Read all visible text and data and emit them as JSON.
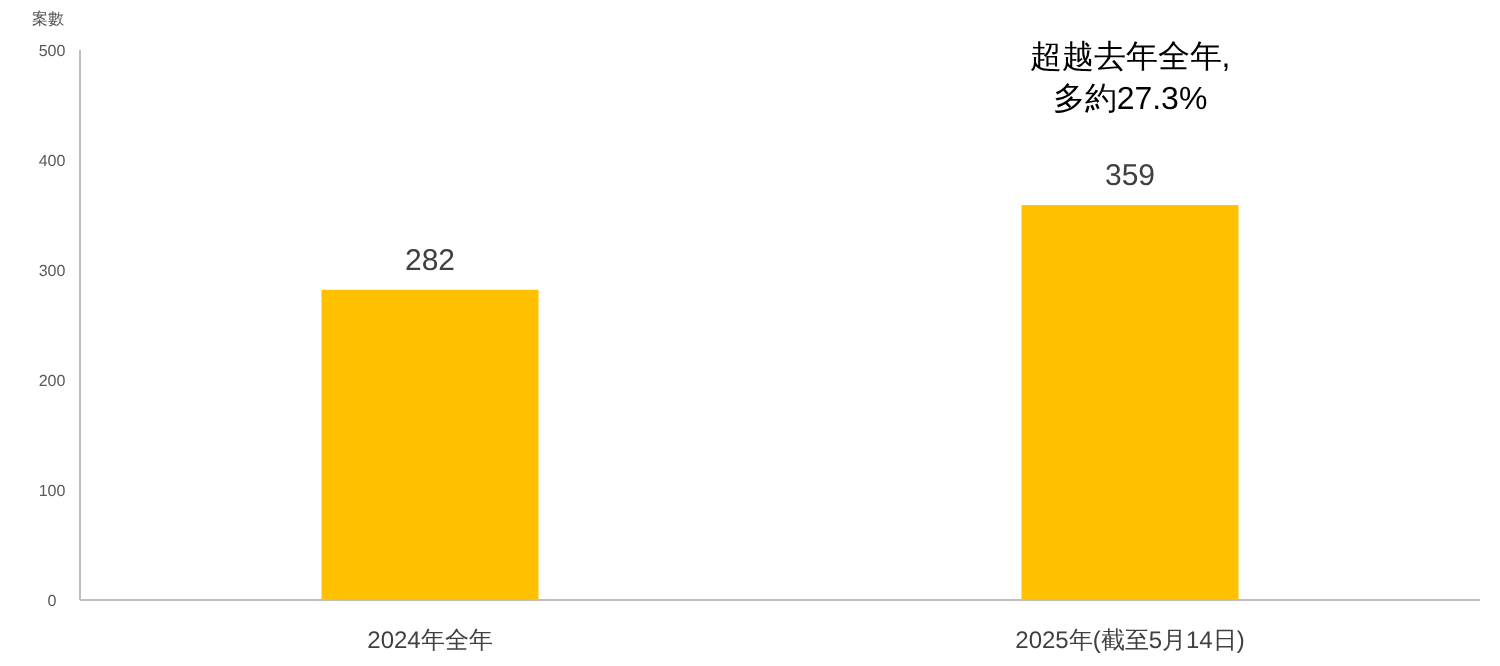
{
  "chart_data": {
    "type": "bar",
    "ylabel": "案數",
    "categories": [
      "2024年全年",
      "2025年(截至5月14日)"
    ],
    "values": [
      282,
      359
    ],
    "color": "#ffc000",
    "data_labels": true,
    "ylim": [
      0,
      500
    ],
    "yticks": [
      0,
      100,
      200,
      300,
      400,
      500
    ],
    "grid": false,
    "annotations": [
      {
        "text": "超越去年全年,多約27.3%",
        "x": "2025年(截至5月14日)",
        "y": 359
      }
    ]
  }
}
